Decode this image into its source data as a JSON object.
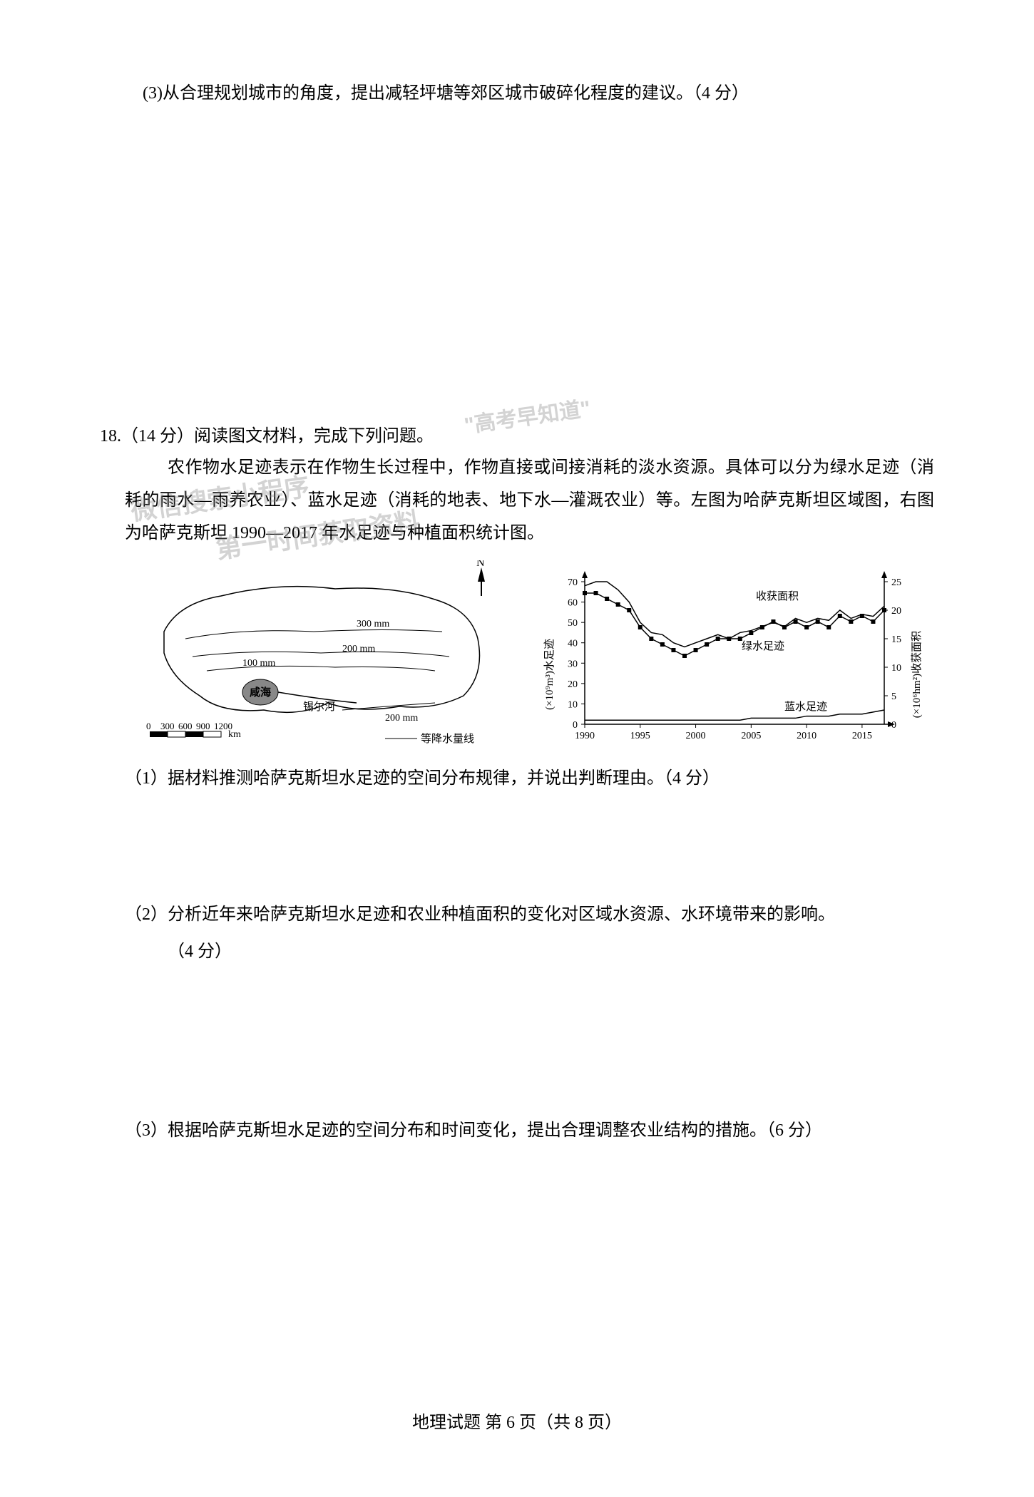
{
  "q17_part3": "(3)从合理规划城市的角度，提出减轻坪塘等郊区城市破碎化程度的建议。（4 分）",
  "q18_header": "18.（14 分）阅读图文材料，完成下列问题。",
  "q18_body": "农作物水足迹表示在作物生长过程中，作物直接或间接消耗的淡水资源。具体可以分为绿水足迹（消耗的雨水—雨养农业）、蓝水足迹（消耗的地表、地下水—灌溉农业）等。左图为哈萨克斯坦区域图，右图为哈萨克斯坦 1990—2017 年水足迹与种植面积统计图。",
  "map": {
    "compass_label": "N",
    "isohyet_100": "100 mm",
    "isohyet_200": "200 mm",
    "isohyet_300": "300 mm",
    "isohyet_bottom": "200 mm",
    "aral_label": "咸海",
    "river_label": "锡尔河",
    "scale_values": "0 300 600 900 1200",
    "scale_unit": "km",
    "legend_label": "等降水量线",
    "outline_color": "#000000",
    "aral_fill": "#888888"
  },
  "chart": {
    "y_left_label": "(×10⁹m³)水足迹",
    "y_right_label": "(×10⁶hm²)收获面积",
    "y_left_ticks": [
      0,
      10,
      20,
      30,
      40,
      50,
      60,
      70
    ],
    "y_right_ticks": [
      0,
      5,
      10,
      15,
      20,
      25
    ],
    "x_ticks": [
      1990,
      1995,
      2000,
      2005,
      2010,
      2015
    ],
    "x_tick_labels": [
      "1990",
      "1995",
      "2000",
      "2005",
      "2010",
      "2015"
    ],
    "series_harvest_label": "收获面积",
    "series_green_label": "绿水足迹",
    "series_blue_label": "蓝水足迹",
    "line_color": "#000000",
    "bg_color": "#ffffff",
    "y_left_max": 70,
    "y_right_max": 25,
    "harvest_data": [
      23,
      23,
      22,
      21,
      20,
      17,
      15,
      14,
      13,
      12,
      13,
      14,
      15,
      15,
      15,
      16,
      17,
      18,
      17,
      18,
      17,
      18,
      17,
      19,
      18,
      19,
      18,
      20
    ],
    "green_data": [
      68,
      70,
      70,
      66,
      60,
      50,
      45,
      44,
      40,
      38,
      40,
      42,
      44,
      42,
      45,
      46,
      48,
      50,
      48,
      52,
      50,
      52,
      51,
      56,
      52,
      54,
      53,
      58
    ],
    "blue_data": [
      2,
      2,
      2,
      2,
      2,
      2,
      2,
      2,
      2,
      2,
      2,
      2,
      2,
      2,
      2,
      3,
      3,
      3,
      3,
      3,
      4,
      4,
      4,
      5,
      5,
      5,
      6,
      7
    ]
  },
  "q18_sub1": "（1）据材料推测哈萨克斯坦水足迹的空间分布规律，并说出判断理由。（4 分）",
  "q18_sub2_line1": "（2）分析近年来哈萨克斯坦水足迹和农业种植面积的变化对区域水资源、水环境带来的影响。",
  "q18_sub2_line2": "（4 分）",
  "q18_sub3": "（3）根据哈萨克斯坦水足迹的空间分布和时间变化，提出合理调整农业结构的措施。（6 分）",
  "page_footer": "地理试题 第 6 页（共 8 页）",
  "watermark": {
    "line1": "微信搜索小程序",
    "line2": "第一时间获取资料",
    "line3": "\"高考早知道\""
  }
}
